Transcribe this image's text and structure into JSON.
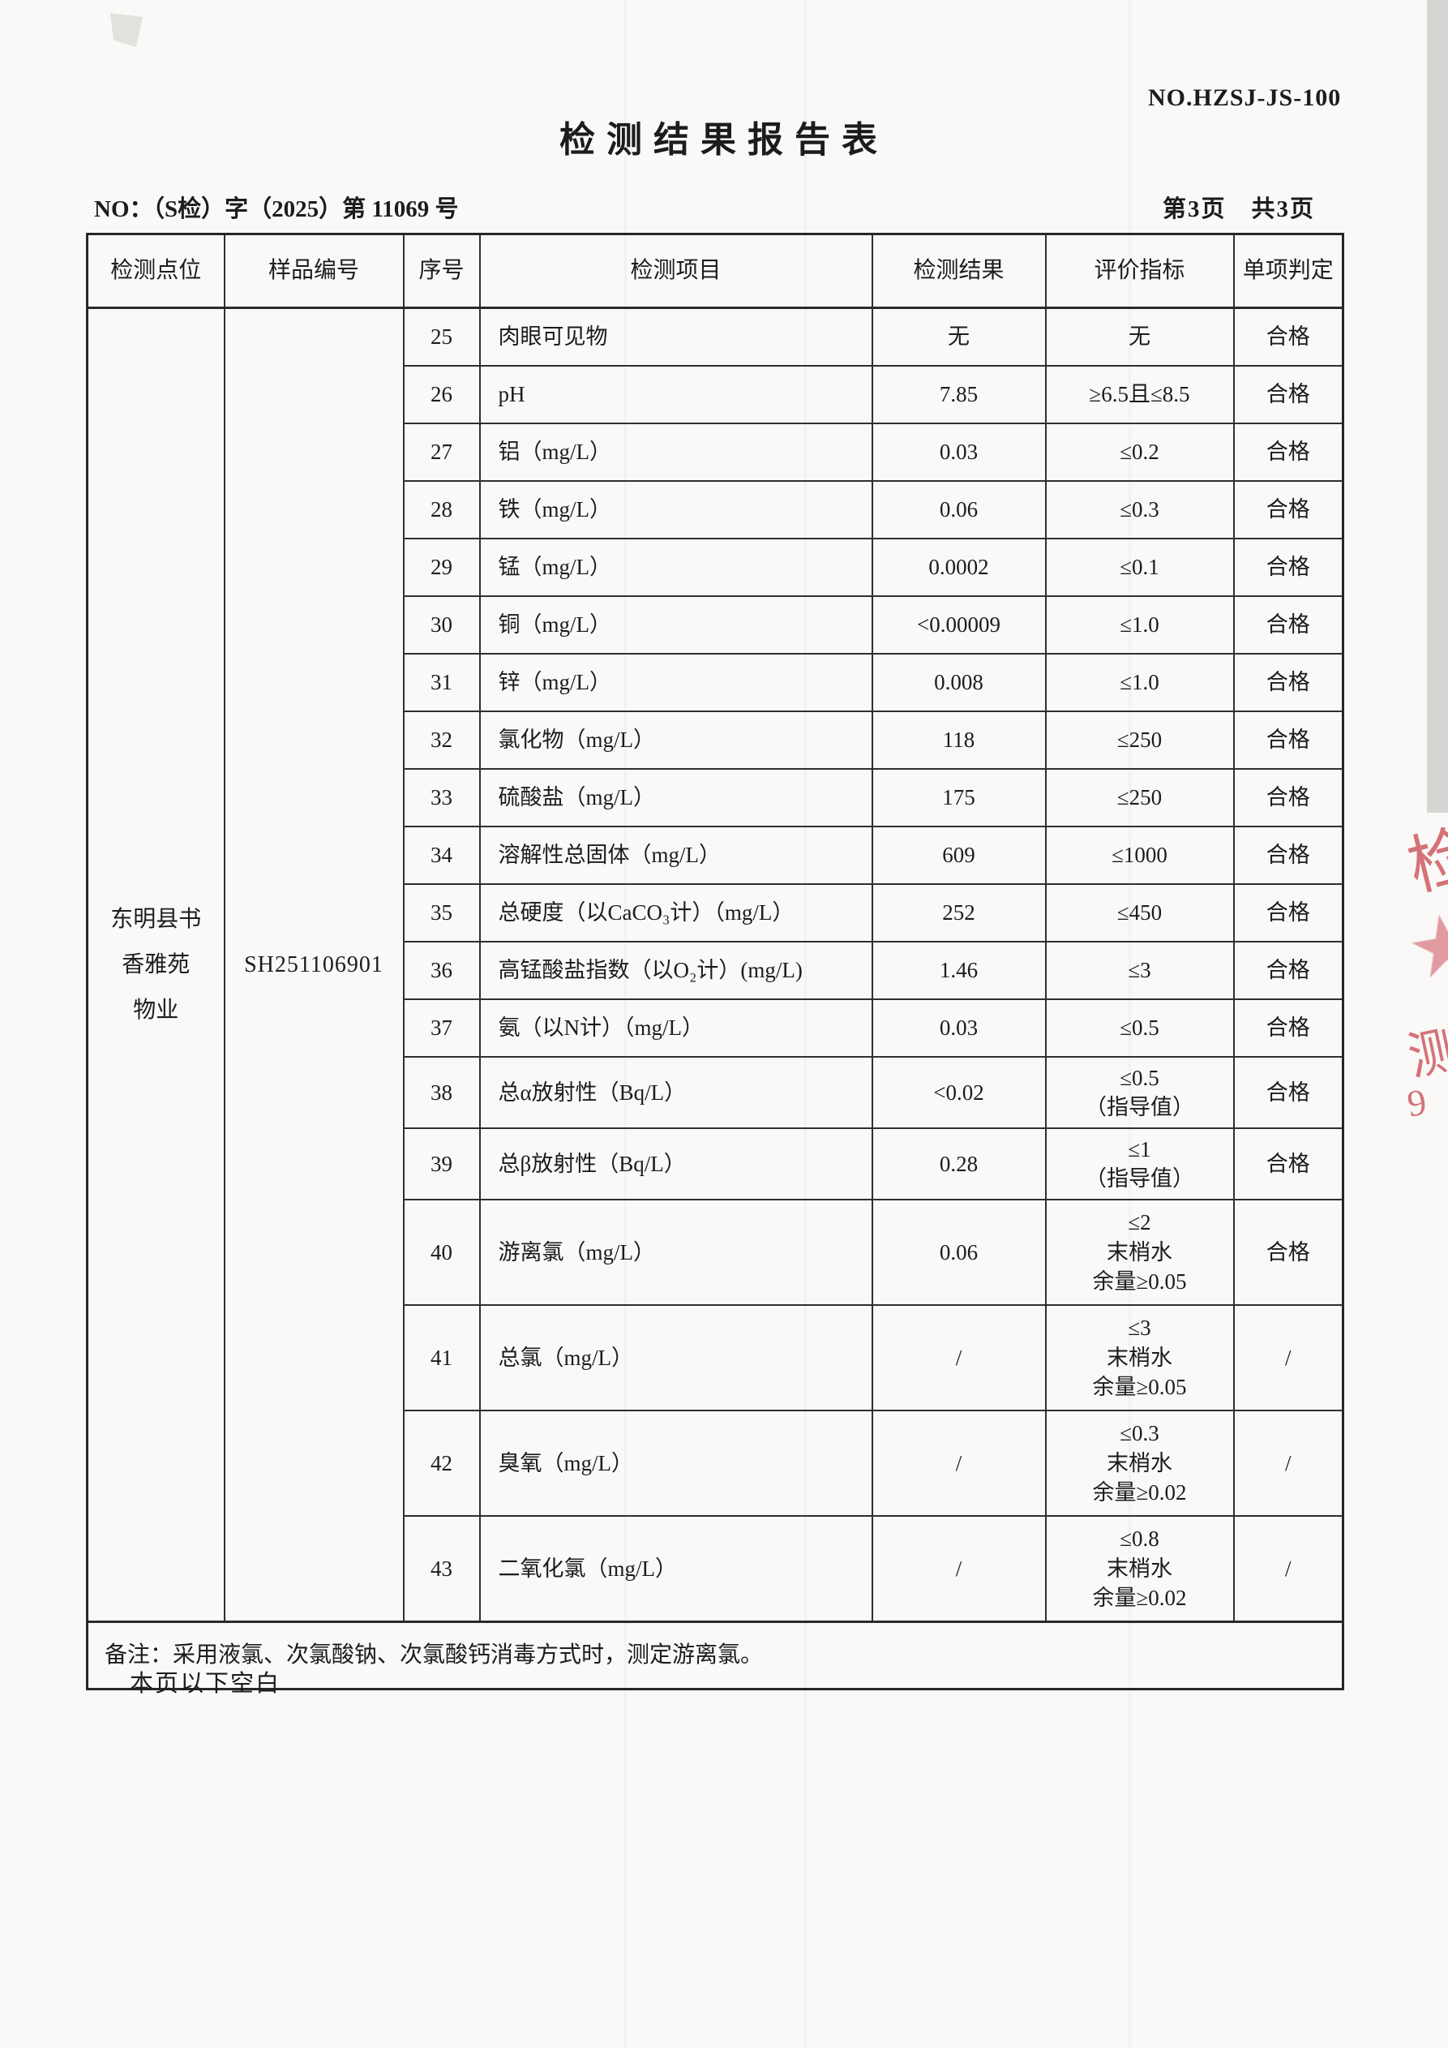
{
  "header": {
    "form_no": "NO.HZSJ-JS-100",
    "title": "检测结果报告表",
    "report_no": "NO：（S检）字（2025）第 11069 号",
    "page_info": "第3页　共3页"
  },
  "table": {
    "columns": [
      "检测点位",
      "样品编号",
      "序号",
      "检测项目",
      "检测结果",
      "评价指标",
      "单项判定"
    ],
    "site": "东明县书\n香雅苑\n物业",
    "sample_id": "SH251106901",
    "rows": [
      {
        "no": "25",
        "item": "肉眼可见物",
        "result": "无",
        "standard": "无",
        "verdict": "合格"
      },
      {
        "no": "26",
        "item": "pH",
        "result": "7.85",
        "standard": "≥6.5且≤8.5",
        "verdict": "合格"
      },
      {
        "no": "27",
        "item": "铝（mg/L）",
        "result": "0.03",
        "standard": "≤0.2",
        "verdict": "合格"
      },
      {
        "no": "28",
        "item": "铁（mg/L）",
        "result": "0.06",
        "standard": "≤0.3",
        "verdict": "合格"
      },
      {
        "no": "29",
        "item": "锰（mg/L）",
        "result": "0.0002",
        "standard": "≤0.1",
        "verdict": "合格"
      },
      {
        "no": "30",
        "item": "铜（mg/L）",
        "result": "<0.00009",
        "standard": "≤1.0",
        "verdict": "合格"
      },
      {
        "no": "31",
        "item": "锌（mg/L）",
        "result": "0.008",
        "standard": "≤1.0",
        "verdict": "合格"
      },
      {
        "no": "32",
        "item": "氯化物（mg/L）",
        "result": "118",
        "standard": "≤250",
        "verdict": "合格"
      },
      {
        "no": "33",
        "item": "硫酸盐（mg/L）",
        "result": "175",
        "standard": "≤250",
        "verdict": "合格"
      },
      {
        "no": "34",
        "item": "溶解性总固体（mg/L）",
        "result": "609",
        "standard": "≤1000",
        "verdict": "合格"
      },
      {
        "no": "35",
        "item": "总硬度（以CaCO₃计）（mg/L）",
        "result": "252",
        "standard": "≤450",
        "verdict": "合格"
      },
      {
        "no": "36",
        "item": "高锰酸盐指数（以O₂计）(mg/L)",
        "result": "1.46",
        "standard": "≤3",
        "verdict": "合格"
      },
      {
        "no": "37",
        "item": "氨（以N计）（mg/L）",
        "result": "0.03",
        "standard": "≤0.5",
        "verdict": "合格"
      },
      {
        "no": "38",
        "item": "总α放射性（Bq/L）",
        "result": "<0.02",
        "standard": "≤0.5\n（指导值）",
        "verdict": "合格"
      },
      {
        "no": "39",
        "item": "总β放射性（Bq/L）",
        "result": "0.28",
        "standard": "≤1\n（指导值）",
        "verdict": "合格"
      },
      {
        "no": "40",
        "item": "游离氯（mg/L）",
        "result": "0.06",
        "standard": "≤2\n末梢水\n余量≥0.05",
        "verdict": "合格"
      },
      {
        "no": "41",
        "item": "总氯（mg/L）",
        "result": "/",
        "standard": "≤3\n末梢水\n余量≥0.05",
        "verdict": "/"
      },
      {
        "no": "42",
        "item": "臭氧（mg/L）",
        "result": "/",
        "standard": "≤0.3\n末梢水\n余量≥0.02",
        "verdict": "/"
      },
      {
        "no": "43",
        "item": "二氧化氯（mg/L）",
        "result": "/",
        "standard": "≤0.8\n末梢水\n余量≥0.02",
        "verdict": "/"
      }
    ],
    "note": "备注：采用液氯、次氯酸钠、次氯酸钙消毒方式时，测定游离氯。"
  },
  "footer": {
    "blank_note": "本页以下空白"
  },
  "stamp": {
    "color": "#cf5b63",
    "star_color": "#dd8b92",
    "fragments": [
      "检",
      "★",
      "测",
      "9"
    ]
  }
}
